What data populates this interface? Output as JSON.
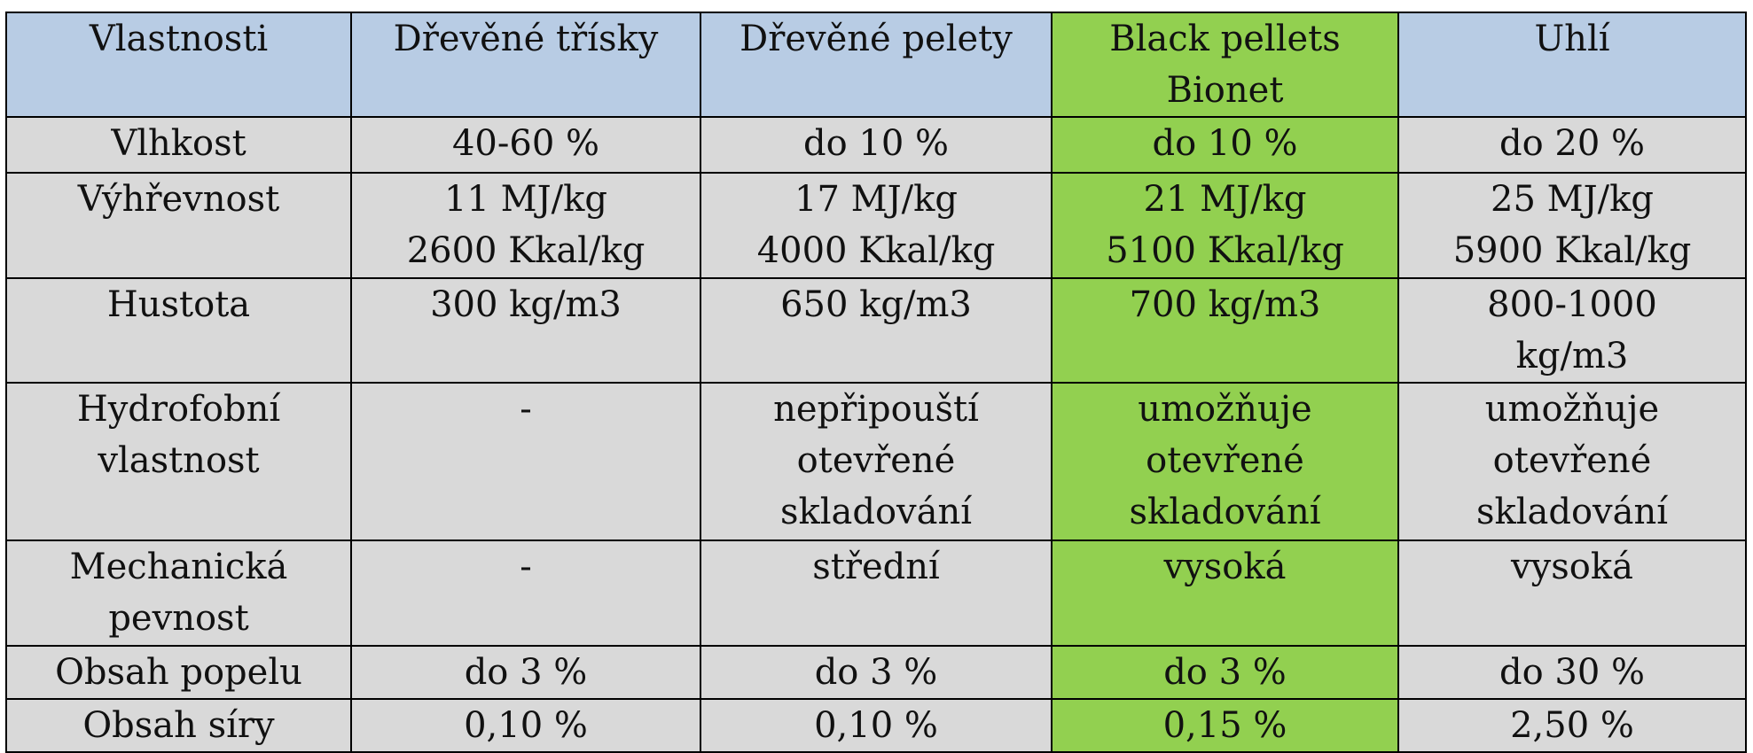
{
  "table": {
    "header": [
      "Vlastnosti",
      "Dřevěné třísky",
      "Dřevěné pelety",
      "Black pellets\nBionet",
      "Uhlí"
    ],
    "rows": [
      [
        "Vlhkost",
        "40-60 %",
        "do 10 %",
        "do 10 %",
        "do 20 %"
      ],
      [
        "Výhřevnost",
        "11 MJ/kg\n2600 Kkal/kg",
        "17 MJ/kg\n4000 Kkal/kg",
        "21 MJ/kg\n5100 Kkal/kg",
        "25 MJ/kg\n5900 Kkal/kg"
      ],
      [
        "Hustota",
        "300 kg/m3",
        "650 kg/m3",
        "700 kg/m3",
        "800-1000\nkg/m3"
      ],
      [
        "Hydrofobní\nvlastnost",
        "-",
        "nepřipouští\notevřené\nskladování",
        "umožňuje\notevřené\nskladování",
        "umožňuje\notevřené\nskladování"
      ],
      [
        "Mechanická\npevnost",
        "-",
        "střední",
        "vysoká",
        "vysoká"
      ],
      [
        "Obsah popelu",
        "do 3 %",
        "do 3 %",
        "do 3 %",
        "do 30 %"
      ],
      [
        "Obsah síry",
        "0,10 %",
        "0,10 %",
        "0,15 %",
        "2,50 %"
      ]
    ]
  }
}
